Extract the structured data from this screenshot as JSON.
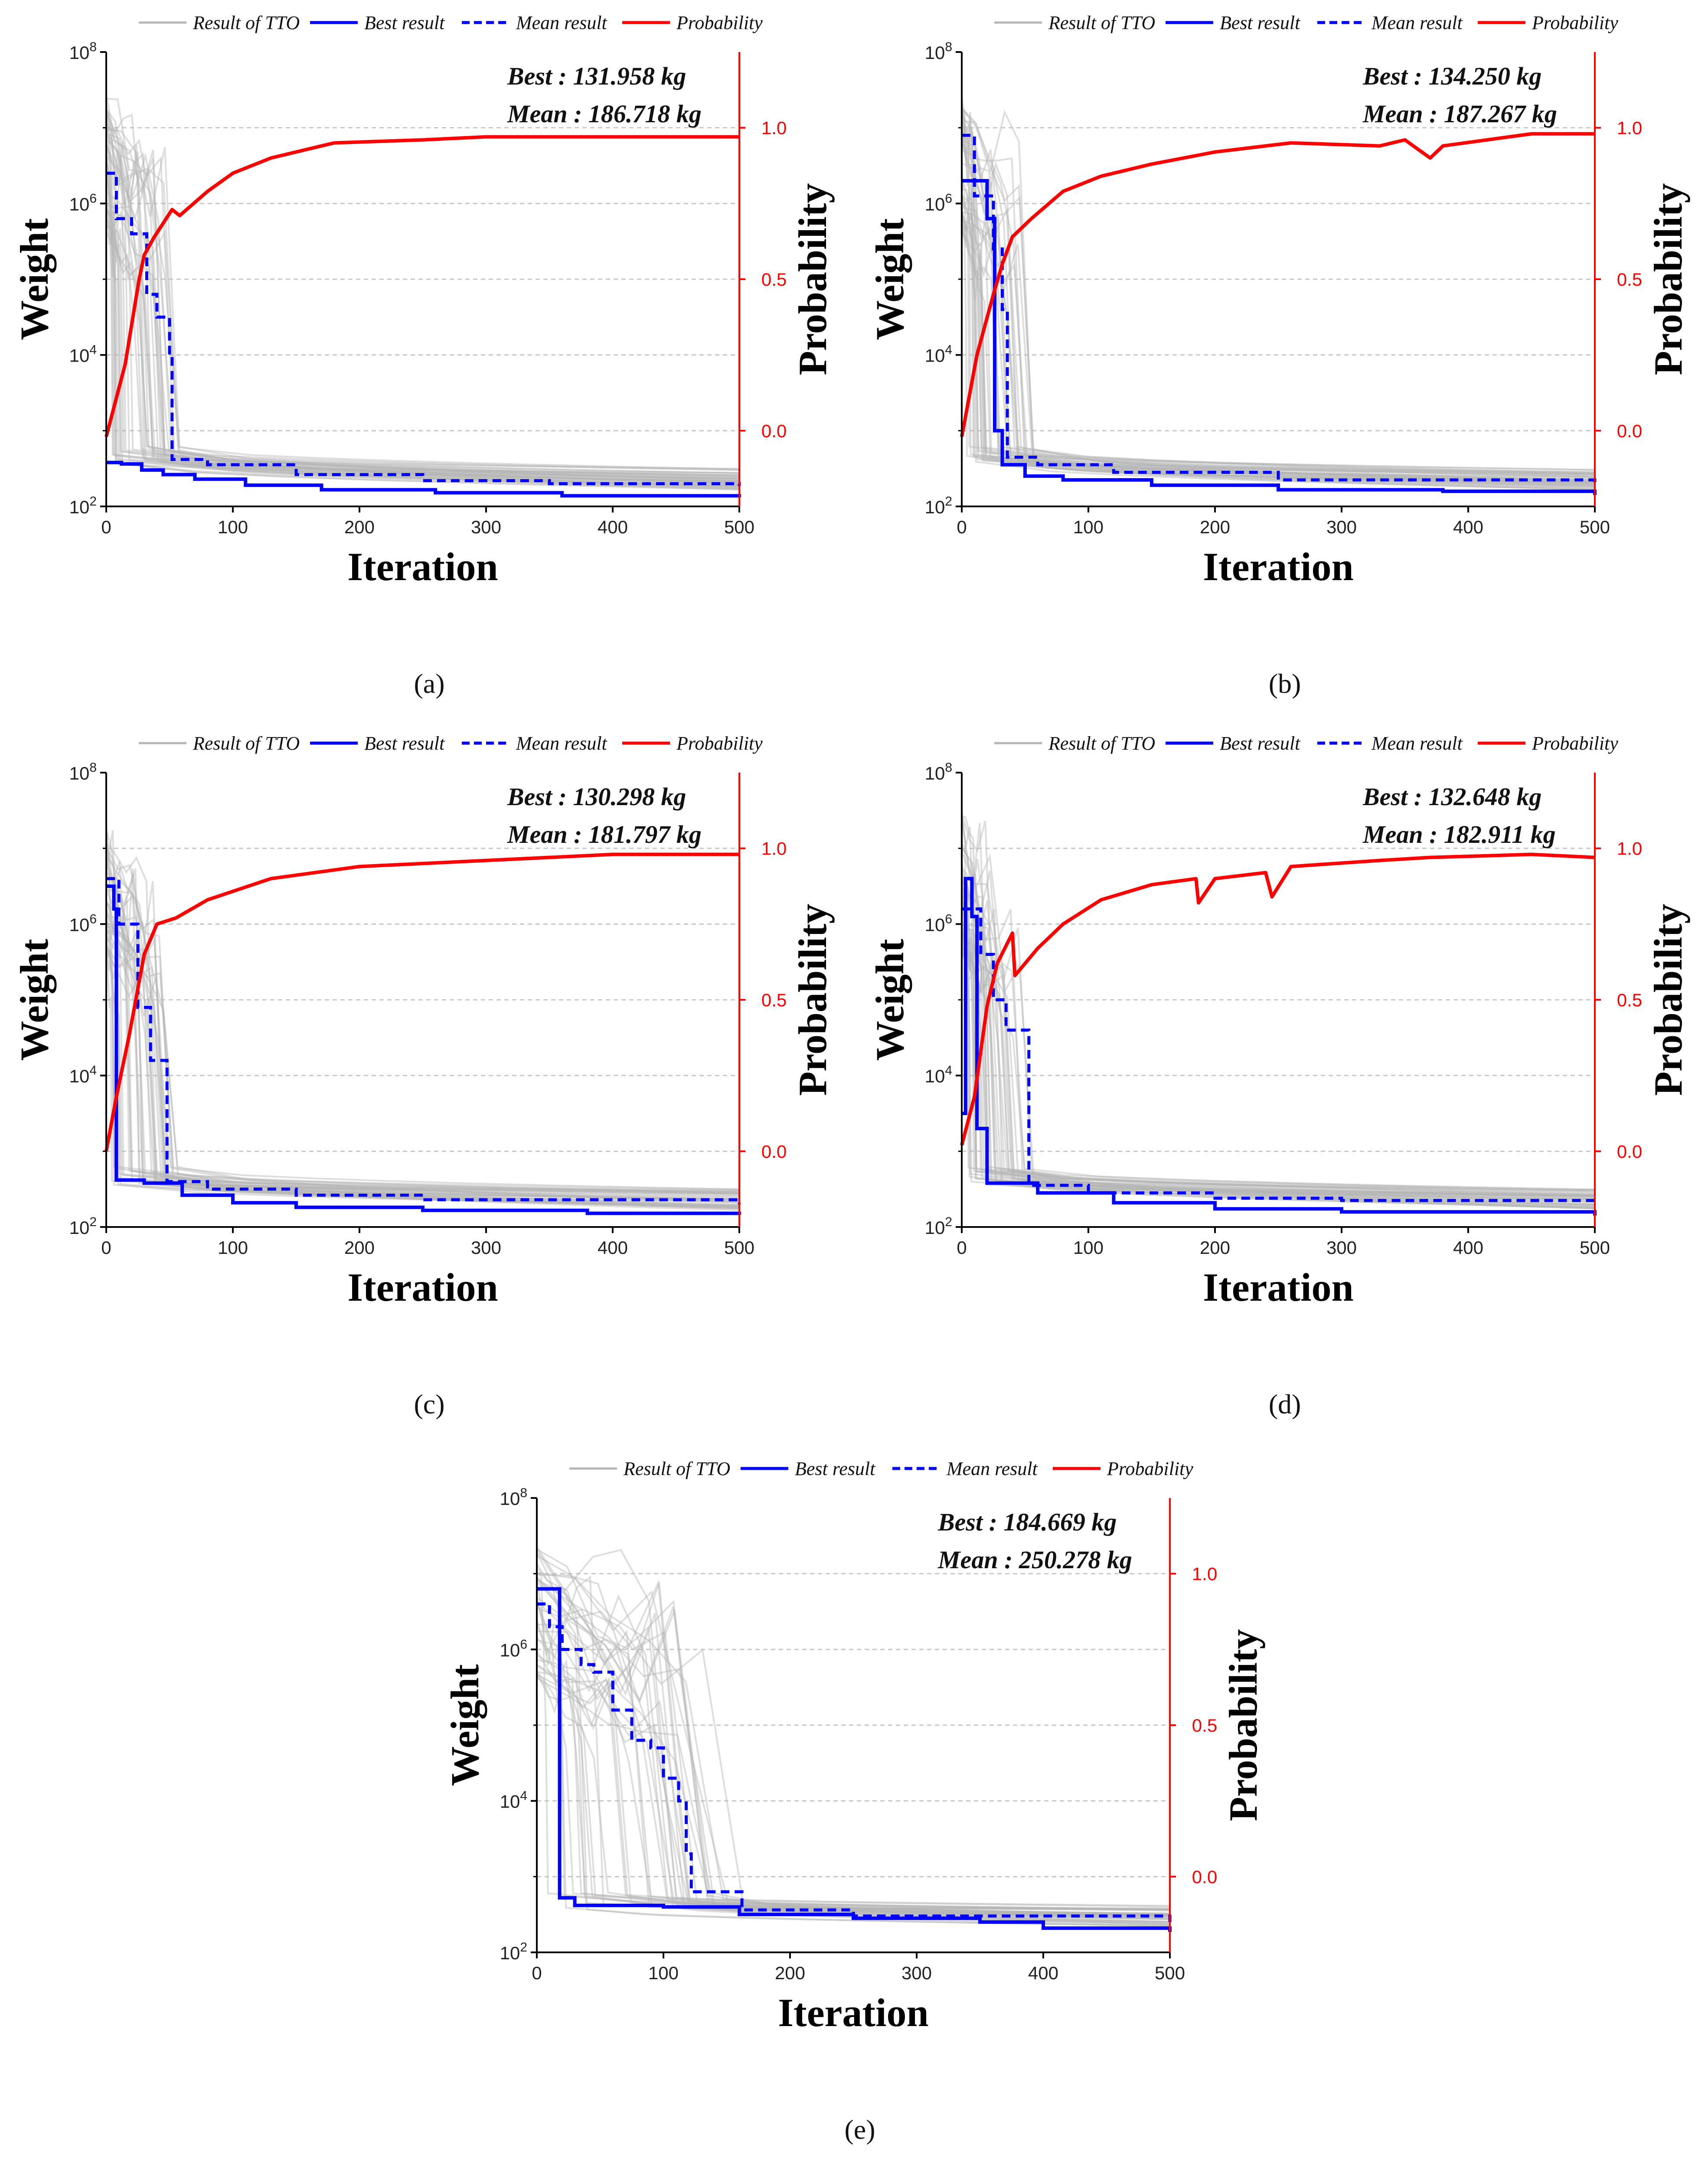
{
  "legend": {
    "ttc": "Result of TTO",
    "best": "Best result",
    "mean": "Mean result",
    "prob": "Probability"
  },
  "colors": {
    "ttc": "#b5b5b5",
    "best": "#0000ff",
    "mean": "#0000ff",
    "prob": "#ff0000",
    "grid": "#c8c8c8"
  },
  "axes": {
    "xlabel": "Iteration",
    "ylabel_left": "Weight",
    "ylabel_right": "Probability",
    "x_ticks": [
      0,
      100,
      200,
      300,
      400,
      500
    ],
    "y_left_exponents": [
      2,
      4,
      6,
      8
    ],
    "y_left_base": "10",
    "y_right_ticks": [
      "0.0",
      "0.5",
      "1.0"
    ]
  },
  "chart_data": [
    {
      "type": "line",
      "panel": "(a)",
      "best_text": "Best : 131.958 kg",
      "mean_text": "Mean : 186.718 kg",
      "xlim": [
        0,
        500
      ],
      "ylim_left_log10": [
        2,
        8
      ],
      "ylim_right": [
        -0.25,
        1.25
      ],
      "series": {
        "best": [
          [
            0,
            2.58
          ],
          [
            12,
            2.56
          ],
          [
            28,
            2.48
          ],
          [
            45,
            2.42
          ],
          [
            70,
            2.36
          ],
          [
            110,
            2.28
          ],
          [
            170,
            2.22
          ],
          [
            260,
            2.18
          ],
          [
            360,
            2.14
          ],
          [
            500,
            2.12
          ]
        ],
        "mean": [
          [
            0,
            6.4
          ],
          [
            8,
            5.8
          ],
          [
            20,
            5.6
          ],
          [
            32,
            4.8
          ],
          [
            40,
            4.5
          ],
          [
            50,
            4.0
          ],
          [
            52,
            2.62
          ],
          [
            80,
            2.55
          ],
          [
            150,
            2.42
          ],
          [
            250,
            2.34
          ],
          [
            350,
            2.3
          ],
          [
            500,
            2.27
          ]
        ],
        "prob": [
          [
            0,
            -0.02
          ],
          [
            15,
            0.22
          ],
          [
            24,
            0.45
          ],
          [
            26,
            0.5
          ],
          [
            30,
            0.58
          ],
          [
            38,
            0.64
          ],
          [
            52,
            0.73
          ],
          [
            58,
            0.71
          ],
          [
            80,
            0.79
          ],
          [
            100,
            0.85
          ],
          [
            130,
            0.9
          ],
          [
            180,
            0.95
          ],
          [
            250,
            0.96
          ],
          [
            300,
            0.97
          ],
          [
            400,
            0.97
          ],
          [
            500,
            0.97
          ]
        ]
      }
    },
    {
      "type": "line",
      "panel": "(b)",
      "best_text": "Best : 134.250 kg",
      "mean_text": "Mean : 187.267 kg",
      "xlim": [
        0,
        500
      ],
      "ylim_left_log10": [
        2,
        8
      ],
      "ylim_right": [
        -0.25,
        1.25
      ],
      "series": {
        "best": [
          [
            0,
            6.3
          ],
          [
            8,
            6.3
          ],
          [
            20,
            5.8
          ],
          [
            26,
            3.0
          ],
          [
            32,
            2.55
          ],
          [
            50,
            2.4
          ],
          [
            80,
            2.35
          ],
          [
            150,
            2.28
          ],
          [
            250,
            2.22
          ],
          [
            380,
            2.2
          ],
          [
            500,
            2.15
          ]
        ],
        "mean": [
          [
            0,
            6.9
          ],
          [
            10,
            6.1
          ],
          [
            25,
            5.4
          ],
          [
            32,
            4.6
          ],
          [
            36,
            2.65
          ],
          [
            60,
            2.55
          ],
          [
            120,
            2.45
          ],
          [
            250,
            2.35
          ],
          [
            500,
            2.3
          ]
        ],
        "prob": [
          [
            0,
            -0.02
          ],
          [
            12,
            0.25
          ],
          [
            25,
            0.45
          ],
          [
            32,
            0.55
          ],
          [
            40,
            0.64
          ],
          [
            55,
            0.7
          ],
          [
            80,
            0.79
          ],
          [
            110,
            0.84
          ],
          [
            150,
            0.88
          ],
          [
            200,
            0.92
          ],
          [
            260,
            0.95
          ],
          [
            330,
            0.94
          ],
          [
            350,
            0.96
          ],
          [
            370,
            0.9
          ],
          [
            380,
            0.94
          ],
          [
            450,
            0.98
          ],
          [
            500,
            0.98
          ]
        ]
      }
    },
    {
      "type": "line",
      "panel": "(c)",
      "best_text": "Best : 130.298 kg",
      "mean_text": "Mean : 181.797 kg",
      "xlim": [
        0,
        500
      ],
      "ylim_left_log10": [
        2,
        8
      ],
      "ylim_right": [
        -0.25,
        1.25
      ],
      "series": {
        "best": [
          [
            0,
            6.5
          ],
          [
            6,
            6.2
          ],
          [
            8,
            2.62
          ],
          [
            30,
            2.58
          ],
          [
            60,
            2.42
          ],
          [
            100,
            2.32
          ],
          [
            150,
            2.26
          ],
          [
            250,
            2.22
          ],
          [
            380,
            2.18
          ],
          [
            500,
            2.16
          ]
        ],
        "mean": [
          [
            0,
            6.6
          ],
          [
            10,
            6.0
          ],
          [
            25,
            4.9
          ],
          [
            35,
            4.2
          ],
          [
            45,
            4.2
          ],
          [
            48,
            2.6
          ],
          [
            80,
            2.5
          ],
          [
            150,
            2.42
          ],
          [
            250,
            2.36
          ],
          [
            500,
            2.3
          ]
        ],
        "prob": [
          [
            0,
            0.0
          ],
          [
            8,
            0.18
          ],
          [
            18,
            0.38
          ],
          [
            30,
            0.65
          ],
          [
            40,
            0.75
          ],
          [
            55,
            0.77
          ],
          [
            80,
            0.83
          ],
          [
            130,
            0.9
          ],
          [
            200,
            0.94
          ],
          [
            300,
            0.96
          ],
          [
            400,
            0.98
          ],
          [
            500,
            0.98
          ]
        ]
      }
    },
    {
      "type": "line",
      "panel": "(d)",
      "best_text": "Best : 132.648 kg",
      "mean_text": "Mean : 182.911 kg",
      "xlim": [
        0,
        500
      ],
      "ylim_left_log10": [
        2,
        8
      ],
      "ylim_right": [
        -0.25,
        1.25
      ],
      "series": {
        "best": [
          [
            0,
            3.5
          ],
          [
            3,
            6.6
          ],
          [
            8,
            6.1
          ],
          [
            12,
            3.3
          ],
          [
            20,
            2.58
          ],
          [
            60,
            2.45
          ],
          [
            120,
            2.32
          ],
          [
            200,
            2.24
          ],
          [
            300,
            2.2
          ],
          [
            500,
            2.15
          ]
        ],
        "mean": [
          [
            0,
            6.2
          ],
          [
            15,
            5.6
          ],
          [
            25,
            5.0
          ],
          [
            35,
            4.6
          ],
          [
            52,
            4.6
          ],
          [
            53,
            2.55
          ],
          [
            100,
            2.45
          ],
          [
            200,
            2.38
          ],
          [
            300,
            2.35
          ],
          [
            500,
            2.3
          ]
        ],
        "prob": [
          [
            0,
            0.02
          ],
          [
            10,
            0.18
          ],
          [
            20,
            0.48
          ],
          [
            28,
            0.62
          ],
          [
            40,
            0.72
          ],
          [
            42,
            0.58
          ],
          [
            60,
            0.67
          ],
          [
            80,
            0.75
          ],
          [
            110,
            0.83
          ],
          [
            150,
            0.88
          ],
          [
            185,
            0.9
          ],
          [
            187,
            0.82
          ],
          [
            200,
            0.9
          ],
          [
            240,
            0.92
          ],
          [
            245,
            0.84
          ],
          [
            260,
            0.94
          ],
          [
            330,
            0.96
          ],
          [
            370,
            0.97
          ],
          [
            450,
            0.98
          ],
          [
            500,
            0.97
          ]
        ]
      }
    },
    {
      "type": "line",
      "panel": "(e)",
      "best_text": "Best : 184.669 kg",
      "mean_text": "Mean : 250.278 kg",
      "xlim": [
        0,
        500
      ],
      "ylim_left_log10": [
        2,
        8
      ],
      "ylim_right": [
        -0.25,
        1.25
      ],
      "series": {
        "best": [
          [
            0,
            6.8
          ],
          [
            15,
            6.8
          ],
          [
            18,
            2.72
          ],
          [
            30,
            2.62
          ],
          [
            100,
            2.6
          ],
          [
            160,
            2.5
          ],
          [
            250,
            2.45
          ],
          [
            350,
            2.4
          ],
          [
            400,
            2.32
          ],
          [
            500,
            2.27
          ]
        ],
        "mean": [
          [
            0,
            6.6
          ],
          [
            10,
            6.3
          ],
          [
            20,
            6.0
          ],
          [
            35,
            5.8
          ],
          [
            45,
            5.7
          ],
          [
            60,
            5.2
          ],
          [
            75,
            4.8
          ],
          [
            90,
            4.7
          ],
          [
            100,
            4.3
          ],
          [
            112,
            4.0
          ],
          [
            118,
            3.3
          ],
          [
            122,
            2.8
          ],
          [
            160,
            2.8
          ],
          [
            162,
            2.56
          ],
          [
            250,
            2.48
          ],
          [
            500,
            2.4
          ]
        ],
        "prob": []
      }
    }
  ]
}
